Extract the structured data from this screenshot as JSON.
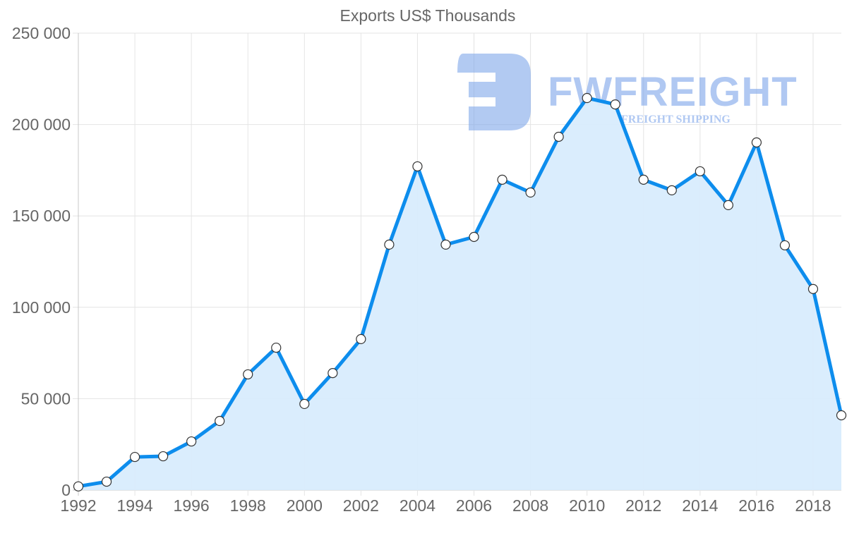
{
  "chart_data": {
    "type": "area",
    "title": "Exports US$ Thousands",
    "xlabel": "",
    "ylabel": "",
    "x": [
      1992,
      1993,
      1994,
      1995,
      1996,
      1997,
      1998,
      1999,
      2000,
      2001,
      2002,
      2003,
      2004,
      2005,
      2006,
      2007,
      2008,
      2009,
      2010,
      2011,
      2012,
      2013,
      2014,
      2015,
      2016,
      2017,
      2018,
      2019
    ],
    "series": [
      {
        "name": "Exports US$ Thousands",
        "values": [
          2000,
          4600,
          18100,
          18500,
          26600,
          37800,
          63300,
          77900,
          47100,
          64000,
          82600,
          134300,
          177100,
          134300,
          138500,
          169800,
          162800,
          193300,
          214500,
          211000,
          169800,
          164000,
          174400,
          155900,
          190200,
          133900,
          110000,
          40900
        ]
      }
    ],
    "ylim": [
      0,
      250000
    ],
    "xlim": [
      1992,
      2019
    ],
    "y_ticks": [
      0,
      50000,
      100000,
      150000,
      200000,
      250000
    ],
    "y_tick_labels": [
      "0",
      "50 000",
      "100 000",
      "150 000",
      "200 000",
      "250 000"
    ],
    "x_ticks": [
      1992,
      1994,
      1996,
      1998,
      2000,
      2002,
      2004,
      2006,
      2008,
      2010,
      2012,
      2014,
      2016,
      2018
    ],
    "x_tick_labels": [
      "1992",
      "1994",
      "1996",
      "1998",
      "2000",
      "2002",
      "2004",
      "2006",
      "2008",
      "2010",
      "2012",
      "2014",
      "2016",
      "2018"
    ],
    "grid": true,
    "legend": "none",
    "colors": {
      "line": "#0d8ded",
      "fill": "#d8ecfd",
      "grid": "#e4e4e4",
      "axis": "#c8c8c8",
      "marker_fill": "#ffffff",
      "marker_stroke": "#333333",
      "text": "#666666"
    }
  },
  "watermark": {
    "brand": "FWFREIGHT",
    "tagline": "FREIGHT SHIPPING",
    "color": "#7fa6ea"
  }
}
